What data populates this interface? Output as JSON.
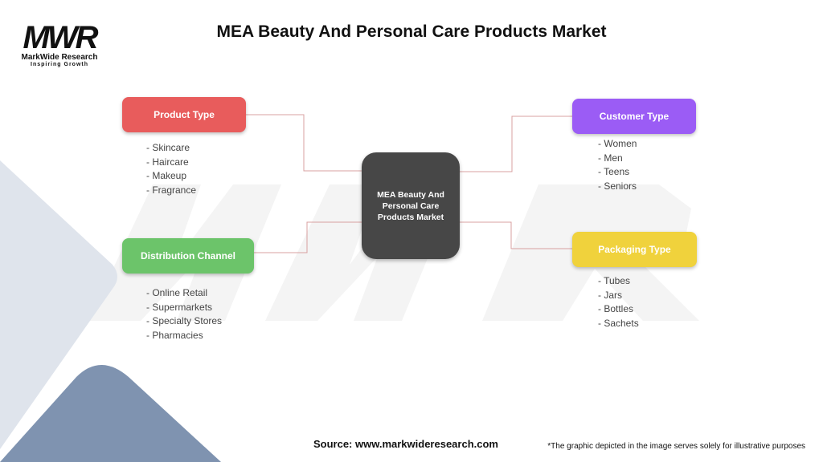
{
  "logo": {
    "mark": "MWR",
    "name": "MarkWide Research",
    "tagline": "Inspiring Growth"
  },
  "title": "MEA Beauty And Personal Care Products Market",
  "center": {
    "label": "MEA Beauty And Personal Care Products Market"
  },
  "branches": [
    {
      "label": "Product Type",
      "color": "#e85c5c",
      "items": [
        "- Skincare",
        "- Haircare",
        "- Makeup",
        "- Fragrance"
      ]
    },
    {
      "label": "Distribution Channel",
      "color": "#6cc46a",
      "items": [
        "- Online Retail",
        "- Supermarkets",
        "- Specialty Stores",
        "- Pharmacies"
      ]
    },
    {
      "label": "Customer Type",
      "color": "#9b5cf5",
      "items": [
        "- Women",
        "- Men",
        "- Teens",
        "- Seniors"
      ]
    },
    {
      "label": "Packaging Type",
      "color": "#f0d23c",
      "items": [
        "- Tubes",
        "- Jars",
        "- Bottles",
        "- Sachets"
      ]
    }
  ],
  "connector_color": "#d9a0a0",
  "footer": {
    "source": "Source: www.markwideresearch.com",
    "note": "*The graphic depicted in the image serves solely for illustrative purposes"
  }
}
